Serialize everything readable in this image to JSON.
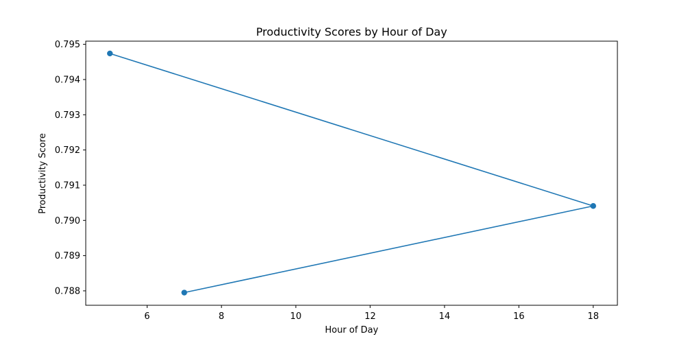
{
  "chart_data": {
    "type": "line",
    "title": "Productivity Scores by Hour of Day",
    "xlabel": "Hour of Day",
    "ylabel": "Productivity Score",
    "xlim": [
      4.35,
      18.65
    ],
    "ylim": [
      0.78759,
      0.79509
    ],
    "x_ticks": [
      6,
      8,
      10,
      12,
      14,
      16,
      18
    ],
    "y_ticks": [
      0.788,
      0.789,
      0.79,
      0.791,
      0.792,
      0.793,
      0.794,
      0.795
    ],
    "x_tick_labels": [
      "6",
      "8",
      "10",
      "12",
      "14",
      "16",
      "18"
    ],
    "y_tick_labels": [
      "0.788",
      "0.789",
      "0.790",
      "0.791",
      "0.792",
      "0.793",
      "0.794",
      "0.795"
    ],
    "grid": false,
    "series": [
      {
        "color": "#1f77b4",
        "marker": "circle",
        "points": [
          {
            "x": 5,
            "y": 0.79474
          },
          {
            "x": 18,
            "y": 0.79041
          },
          {
            "x": 7,
            "y": 0.78795
          }
        ]
      }
    ]
  }
}
